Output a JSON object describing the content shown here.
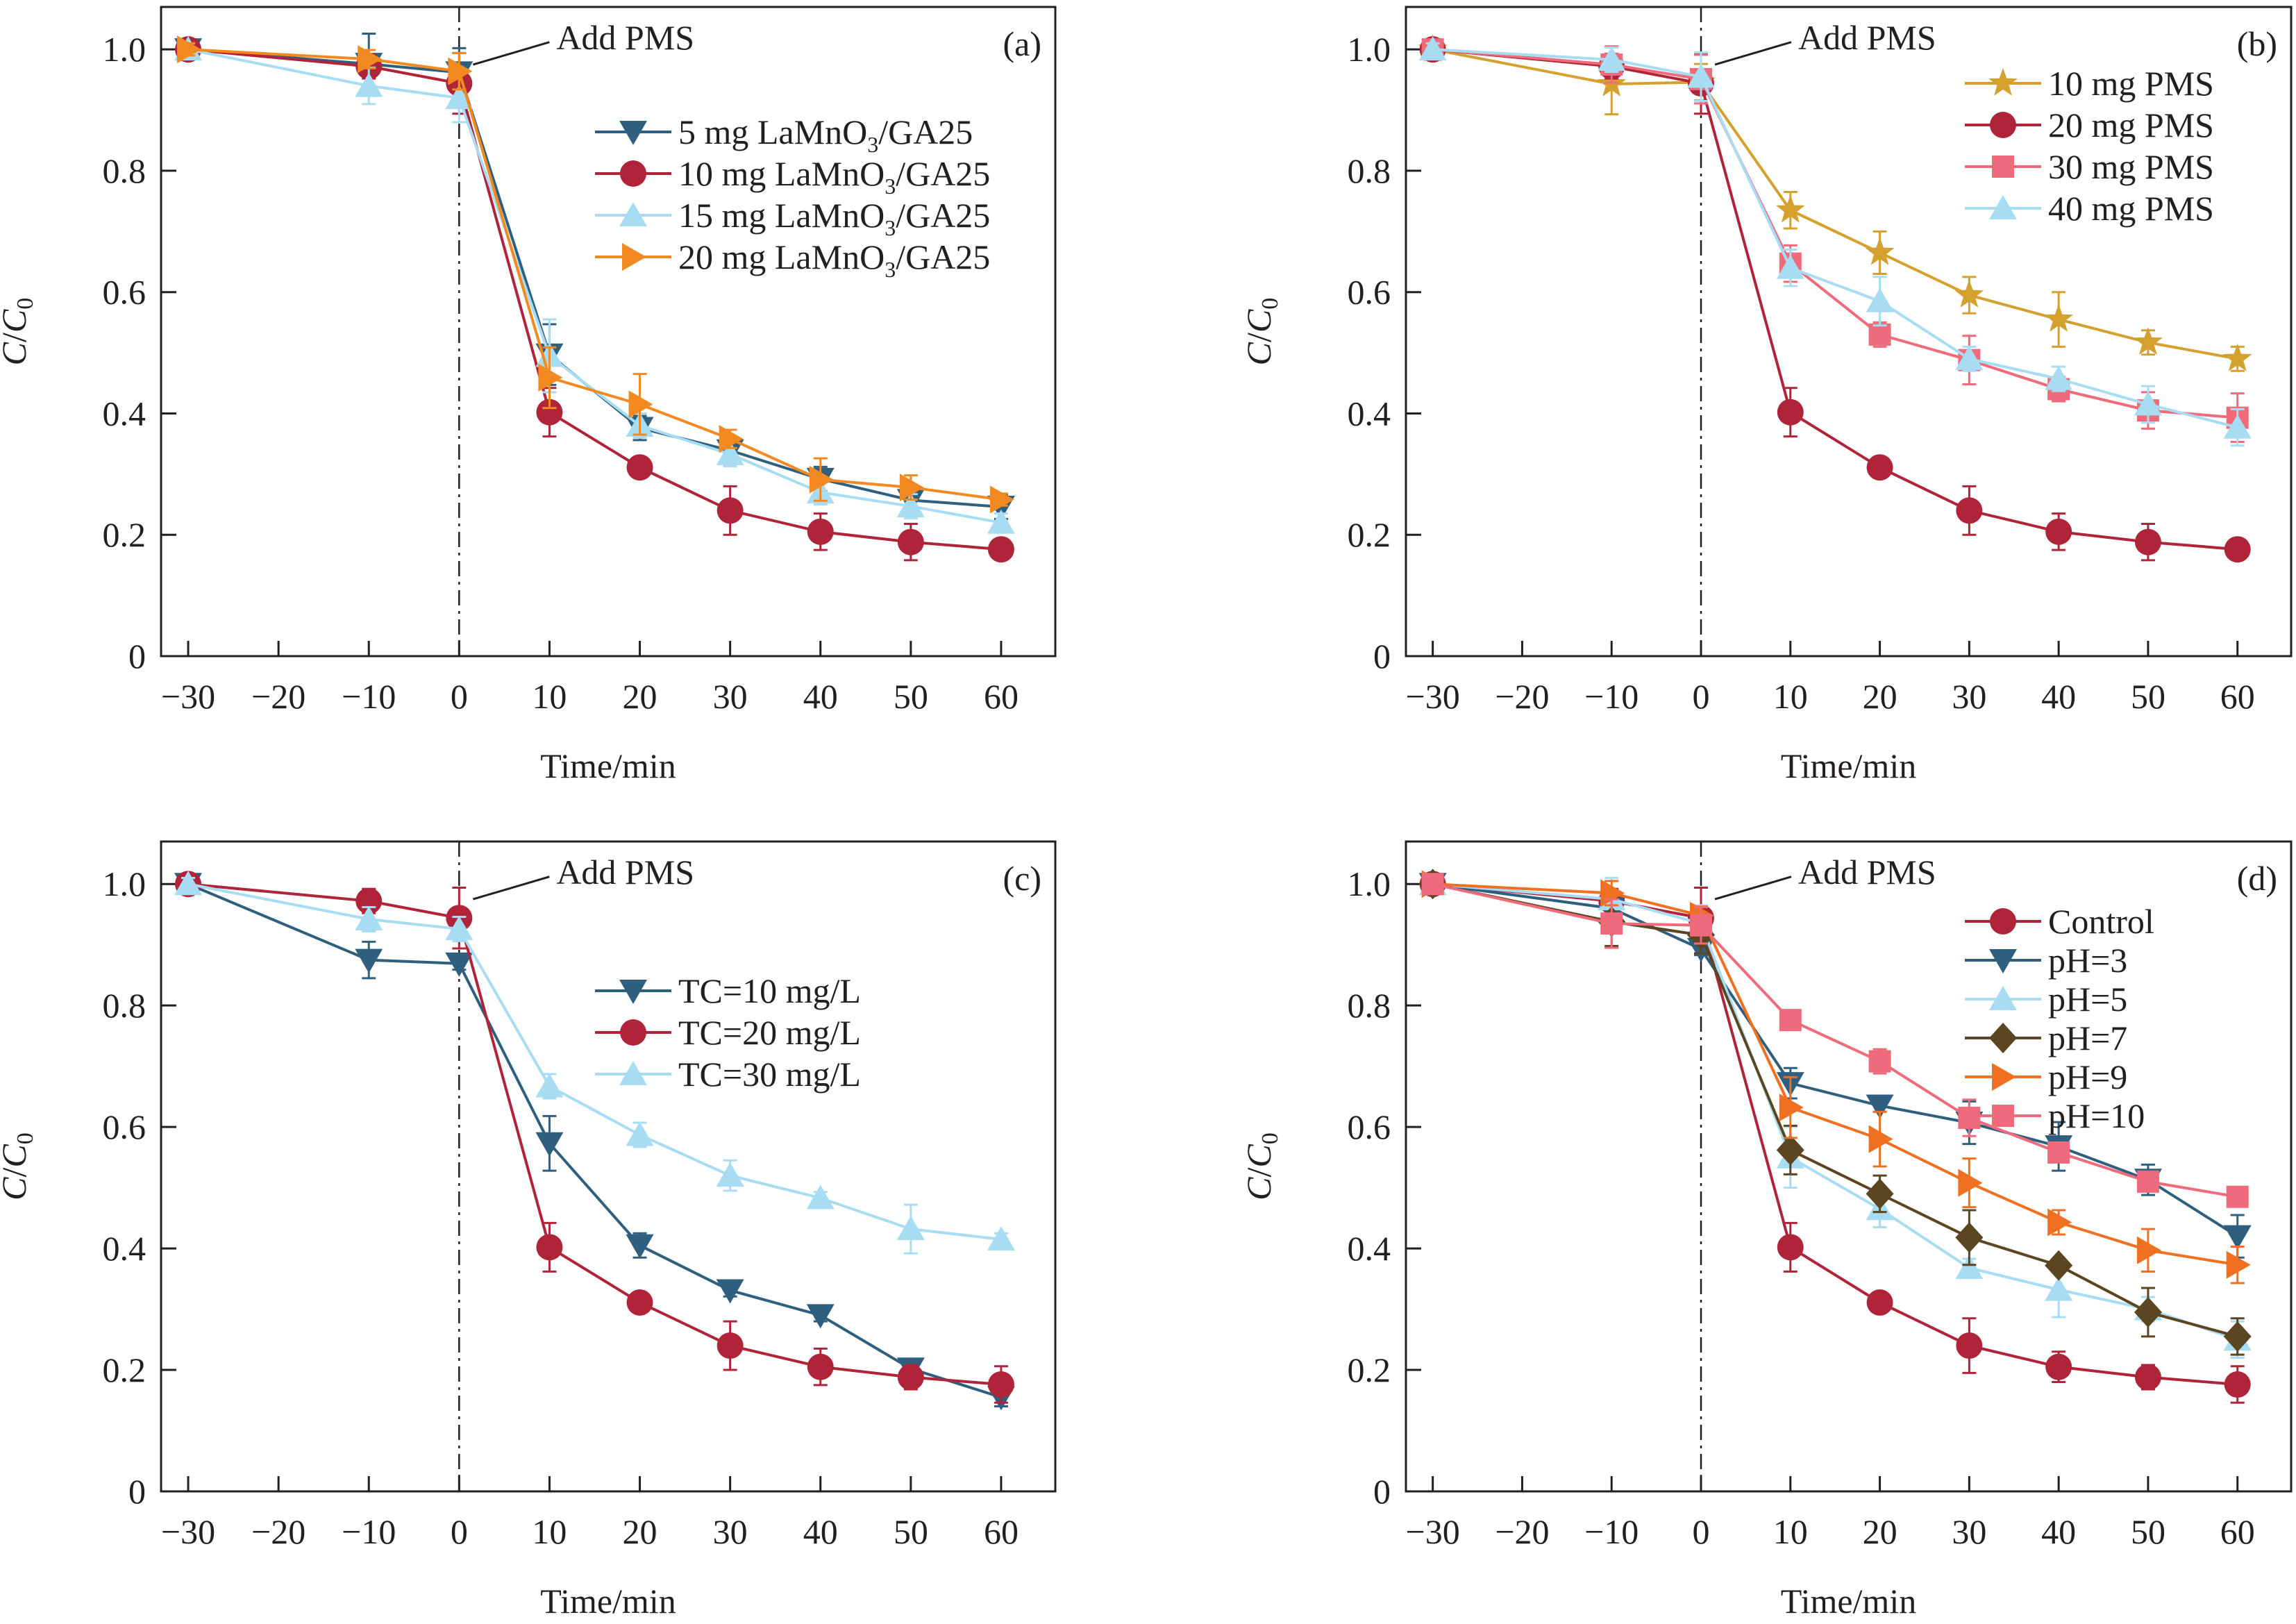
{
  "figure": {
    "colors": {
      "axis": "#231f20",
      "navy": "#2f5f7f",
      "crimson": "#b0243a",
      "lightblue": "#a8dcf3",
      "orange": "#f28a21",
      "gold": "#d4a02e",
      "pink": "#ef6b7b",
      "brown": "#5c4521",
      "orange_red": "#ef7021"
    }
  },
  "chart_data": [
    {
      "type": "line",
      "panel_label": "(a)",
      "title": "",
      "xlabel": "Time/min",
      "ylabel": "C/C0",
      "ylabel_parts": [
        "C",
        "/",
        "C",
        "0"
      ],
      "xlim": [
        -33,
        66
      ],
      "ylim": [
        0,
        1.07
      ],
      "x_ticks": [
        -30,
        -20,
        -10,
        0,
        10,
        20,
        30,
        40,
        50,
        60
      ],
      "x_tick_labels": [
        "−30",
        "−20",
        "−10",
        "0",
        "10",
        "20",
        "30",
        "40",
        "50",
        "60"
      ],
      "y_ticks": [
        0,
        0.2,
        0.4,
        0.6,
        0.8,
        1.0
      ],
      "y_tick_labels": [
        "0",
        "0.2",
        "0.4",
        "0.6",
        "0.8",
        "1.0"
      ],
      "grid": false,
      "legend_position": "upper-right",
      "annotation": {
        "text": "Add PMS",
        "x": 0
      },
      "x": [
        -30,
        -10,
        0,
        10,
        20,
        30,
        40,
        50,
        60
      ],
      "series": [
        {
          "name": "5 mg LaMnO3/GA25",
          "legend": [
            "5 mg LaMnO",
            "3",
            "/GA25"
          ],
          "marker": "triangle-down",
          "color": "#2f5f7f",
          "values": [
            1.0,
            0.976,
            0.962,
            0.497,
            0.376,
            0.339,
            0.292,
            0.257,
            0.246
          ],
          "errors": [
            0.01,
            0.05,
            0.04,
            0.05,
            0.02,
            0.02,
            0.02,
            0.02,
            0.02
          ]
        },
        {
          "name": "10 mg LaMnO3/GA25",
          "legend": [
            "10 mg LaMnO",
            "3",
            "/GA25"
          ],
          "marker": "circle",
          "color": "#b0243a",
          "values": [
            1.0,
            0.972,
            0.944,
            0.402,
            0.311,
            0.24,
            0.205,
            0.188,
            0.176
          ],
          "errors": [
            0.01,
            0.02,
            0.05,
            0.04,
            0.01,
            0.04,
            0.03,
            0.03,
            0.015
          ]
        },
        {
          "name": "15 mg LaMnO3/GA25",
          "legend": [
            "15 mg LaMnO",
            "3",
            "/GA25"
          ],
          "marker": "triangle-up",
          "color": "#a8dcf3",
          "values": [
            1.0,
            0.94,
            0.92,
            0.495,
            0.38,
            0.333,
            0.27,
            0.247,
            0.22
          ],
          "errors": [
            0.01,
            0.03,
            0.04,
            0.06,
            0.02,
            0.02,
            0.02,
            0.02,
            0.015
          ]
        },
        {
          "name": "20 mg LaMnO3/GA25",
          "legend": [
            "20 mg LaMnO",
            "3",
            "/GA25"
          ],
          "marker": "triangle-right",
          "color": "#f28a21",
          "values": [
            1.0,
            0.984,
            0.964,
            0.459,
            0.415,
            0.358,
            0.291,
            0.278,
            0.258
          ],
          "errors": [
            0.01,
            0.015,
            0.03,
            0.05,
            0.05,
            0.015,
            0.035,
            0.02,
            0.01
          ]
        }
      ]
    },
    {
      "type": "line",
      "panel_label": "(b)",
      "title": "",
      "xlabel": "Time/min",
      "ylabel": "C/C0",
      "ylabel_parts": [
        "C",
        "/",
        "C",
        "0"
      ],
      "xlim": [
        -33,
        66
      ],
      "ylim": [
        0,
        1.07
      ],
      "x_ticks": [
        -30,
        -20,
        -10,
        0,
        10,
        20,
        30,
        40,
        50,
        60
      ],
      "x_tick_labels": [
        "−30",
        "−20",
        "−10",
        "0",
        "10",
        "20",
        "30",
        "40",
        "50",
        "60"
      ],
      "y_ticks": [
        0,
        0.2,
        0.4,
        0.6,
        0.8,
        1.0
      ],
      "y_tick_labels": [
        "0",
        "0.2",
        "0.4",
        "0.6",
        "0.8",
        "1.0"
      ],
      "grid": false,
      "legend_position": "upper-right",
      "annotation": {
        "text": "Add PMS",
        "x": 0
      },
      "x": [
        -30,
        -10,
        0,
        10,
        20,
        30,
        40,
        50,
        60
      ],
      "series": [
        {
          "name": "10 mg PMS",
          "legend": [
            "10 mg PMS",
            "",
            ""
          ],
          "marker": "star",
          "color": "#d4a02e",
          "values": [
            1.0,
            0.943,
            0.946,
            0.735,
            0.665,
            0.595,
            0.555,
            0.517,
            0.49
          ],
          "errors": [
            0.01,
            0.05,
            0.03,
            0.03,
            0.035,
            0.03,
            0.045,
            0.02,
            0.02
          ]
        },
        {
          "name": "20 mg PMS",
          "legend": [
            "20 mg PMS",
            "",
            ""
          ],
          "marker": "circle",
          "color": "#b0243a",
          "values": [
            1.0,
            0.972,
            0.944,
            0.402,
            0.311,
            0.24,
            0.205,
            0.188,
            0.176
          ],
          "errors": [
            0.01,
            0.02,
            0.05,
            0.04,
            0.01,
            0.04,
            0.03,
            0.03,
            0.015
          ]
        },
        {
          "name": "30 mg PMS",
          "legend": [
            "30 mg PMS",
            "",
            ""
          ],
          "marker": "square",
          "color": "#ef6b7b",
          "values": [
            1.0,
            0.975,
            0.951,
            0.647,
            0.53,
            0.488,
            0.44,
            0.405,
            0.393
          ],
          "errors": [
            0.01,
            0.03,
            0.04,
            0.03,
            0.02,
            0.04,
            0.02,
            0.03,
            0.04
          ]
        },
        {
          "name": "40 mg PMS",
          "legend": [
            "40 mg PMS",
            "",
            ""
          ],
          "marker": "triangle-up",
          "color": "#a8dcf3",
          "values": [
            1.0,
            0.983,
            0.955,
            0.64,
            0.585,
            0.49,
            0.457,
            0.415,
            0.377
          ],
          "errors": [
            0.01,
            0.02,
            0.04,
            0.03,
            0.04,
            0.02,
            0.02,
            0.03,
            0.03
          ]
        }
      ]
    },
    {
      "type": "line",
      "panel_label": "(c)",
      "title": "",
      "xlabel": "Time/min",
      "ylabel": "C/C0",
      "ylabel_parts": [
        "C",
        "/",
        "C",
        "0"
      ],
      "xlim": [
        -33,
        66
      ],
      "ylim": [
        0,
        1.07
      ],
      "x_ticks": [
        -30,
        -20,
        -10,
        0,
        10,
        20,
        30,
        40,
        50,
        60
      ],
      "x_tick_labels": [
        "−30",
        "−20",
        "−10",
        "0",
        "10",
        "20",
        "30",
        "40",
        "50",
        "60"
      ],
      "y_ticks": [
        0,
        0.2,
        0.4,
        0.6,
        0.8,
        1.0
      ],
      "y_tick_labels": [
        "0",
        "0.2",
        "0.4",
        "0.6",
        "0.8",
        "1.0"
      ],
      "grid": false,
      "legend_position": "upper-right",
      "annotation": {
        "text": "Add PMS",
        "x": 0
      },
      "x": [
        -30,
        -10,
        0,
        10,
        20,
        30,
        40,
        50,
        60
      ],
      "series": [
        {
          "name": "TC=10 mg/L",
          "legend": [
            "TC=10 mg/L",
            "",
            ""
          ],
          "marker": "triangle-down",
          "color": "#2f5f7f",
          "values": [
            1.0,
            0.875,
            0.869,
            0.573,
            0.405,
            0.331,
            0.29,
            0.202,
            0.155
          ],
          "errors": [
            0.01,
            0.03,
            0.01,
            0.045,
            0.02,
            0.01,
            0.01,
            0.01,
            0.015
          ]
        },
        {
          "name": "TC=20 mg/L",
          "legend": [
            "TC=20 mg/L",
            "",
            ""
          ],
          "marker": "circle",
          "color": "#b0243a",
          "values": [
            1.0,
            0.972,
            0.944,
            0.402,
            0.311,
            0.24,
            0.205,
            0.188,
            0.176
          ],
          "errors": [
            0.01,
            0.02,
            0.05,
            0.04,
            0.01,
            0.04,
            0.03,
            0.02,
            0.03
          ]
        },
        {
          "name": "TC=30 mg/L",
          "legend": [
            "TC=30 mg/L",
            "",
            ""
          ],
          "marker": "triangle-up",
          "color": "#a8dcf3",
          "values": [
            1.0,
            0.942,
            0.926,
            0.667,
            0.587,
            0.52,
            0.483,
            0.432,
            0.415
          ],
          "errors": [
            0.01,
            0.02,
            0.02,
            0.02,
            0.02,
            0.025,
            0.01,
            0.04,
            0.01
          ]
        }
      ]
    },
    {
      "type": "line",
      "panel_label": "(d)",
      "title": "",
      "xlabel": "Time/min",
      "ylabel": "C/C0",
      "ylabel_parts": [
        "C",
        "/",
        "C",
        "0"
      ],
      "xlim": [
        -33,
        66
      ],
      "ylim": [
        0,
        1.07
      ],
      "x_ticks": [
        -30,
        -20,
        -10,
        0,
        10,
        20,
        30,
        40,
        50,
        60
      ],
      "x_tick_labels": [
        "−30",
        "−20",
        "−10",
        "0",
        "10",
        "20",
        "30",
        "40",
        "50",
        "60"
      ],
      "y_ticks": [
        0,
        0.2,
        0.4,
        0.6,
        0.8,
        1.0
      ],
      "y_tick_labels": [
        "0",
        "0.2",
        "0.4",
        "0.6",
        "0.8",
        "1.0"
      ],
      "grid": false,
      "legend_position": "upper-right",
      "annotation": {
        "text": "Add PMS",
        "x": 0
      },
      "x": [
        -30,
        -10,
        0,
        10,
        20,
        30,
        40,
        50,
        60
      ],
      "series": [
        {
          "name": "Control",
          "legend": [
            "Control",
            "",
            ""
          ],
          "marker": "circle",
          "color": "#b0243a",
          "values": [
            1.0,
            0.972,
            0.944,
            0.402,
            0.311,
            0.24,
            0.205,
            0.188,
            0.176
          ],
          "errors": [
            0.01,
            0.02,
            0.05,
            0.04,
            0.01,
            0.045,
            0.025,
            0.02,
            0.03
          ]
        },
        {
          "name": "pH=3",
          "legend": [
            "pH=3",
            "",
            ""
          ],
          "marker": "triangle-down",
          "color": "#2f5f7f",
          "values": [
            1.0,
            0.96,
            0.893,
            0.672,
            0.635,
            0.607,
            0.568,
            0.513,
            0.42
          ],
          "errors": [
            0.01,
            0.03,
            0.01,
            0.025,
            0.01,
            0.035,
            0.04,
            0.025,
            0.035
          ]
        },
        {
          "name": "pH=5",
          "legend": [
            "pH=5",
            "",
            ""
          ],
          "marker": "triangle-up",
          "color": "#a8dcf3",
          "values": [
            1.0,
            0.975,
            0.935,
            0.55,
            0.465,
            0.368,
            0.332,
            0.3,
            0.25
          ],
          "errors": [
            0.01,
            0.035,
            0.03,
            0.05,
            0.03,
            0.015,
            0.045,
            0.02,
            0.03
          ]
        },
        {
          "name": "pH=7",
          "legend": [
            "pH=7",
            "",
            ""
          ],
          "marker": "diamond",
          "color": "#5c4521",
          "values": [
            1.0,
            0.938,
            0.916,
            0.562,
            0.49,
            0.418,
            0.372,
            0.295,
            0.255
          ],
          "errors": [
            0.01,
            0.04,
            0.03,
            0.04,
            0.03,
            0.045,
            0.01,
            0.04,
            0.03
          ]
        },
        {
          "name": "pH=9",
          "legend": [
            "pH=9",
            "",
            ""
          ],
          "marker": "triangle-right",
          "color": "#ef7021",
          "values": [
            1.0,
            0.985,
            0.948,
            0.632,
            0.58,
            0.508,
            0.443,
            0.397,
            0.373
          ],
          "errors": [
            0.01,
            0.02,
            0.015,
            0.05,
            0.045,
            0.04,
            0.02,
            0.035,
            0.03
          ]
        },
        {
          "name": "pH=10",
          "legend": [
            "pH=10",
            "",
            ""
          ],
          "marker": "square",
          "color": "#ef6b7b",
          "values": [
            1.0,
            0.935,
            0.932,
            0.776,
            0.708,
            0.615,
            0.558,
            0.51,
            0.485
          ],
          "errors": [
            0.01,
            0.04,
            0.03,
            0.01,
            0.02,
            0.03,
            0.01,
            0.01,
            0.01
          ]
        }
      ]
    }
  ]
}
